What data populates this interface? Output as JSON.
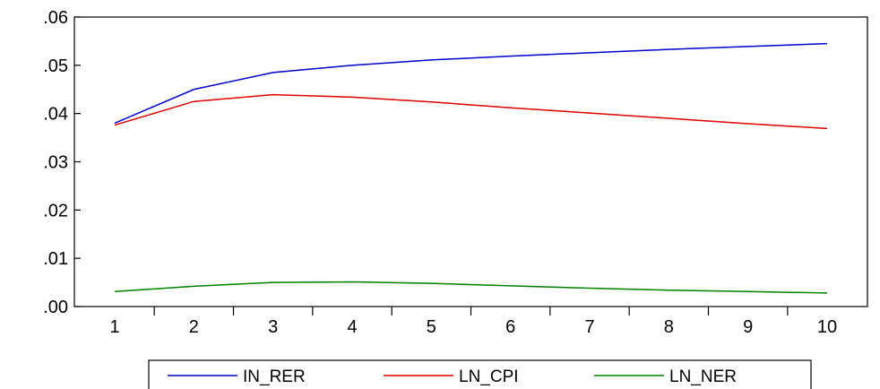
{
  "chart_data": {
    "type": "line",
    "title": "",
    "xlabel": "",
    "ylabel": "",
    "x": [
      1,
      2,
      3,
      4,
      5,
      6,
      7,
      8,
      9,
      10
    ],
    "xtick_labels": [
      "1",
      "2",
      "3",
      "4",
      "5",
      "6",
      "7",
      "8",
      "9",
      "10"
    ],
    "ylim": [
      0,
      0.06
    ],
    "yticks": [
      0.0,
      0.01,
      0.02,
      0.03,
      0.04,
      0.05,
      0.06
    ],
    "ytick_labels": [
      ".00",
      ".01",
      ".02",
      ".03",
      ".04",
      ".05",
      ".06"
    ],
    "grid": false,
    "legend_position": "bottom-center",
    "series": [
      {
        "name": "IN_RER",
        "color": "#0000cc",
        "values": [
          0.038,
          0.045,
          0.0485,
          0.05,
          0.0511,
          0.0519,
          0.0526,
          0.0533,
          0.0539,
          0.0545
        ]
      },
      {
        "name": "LN_CPI",
        "color": "#dd0000",
        "values": [
          0.0376,
          0.0425,
          0.0439,
          0.0434,
          0.0424,
          0.0412,
          0.0401,
          0.039,
          0.0379,
          0.0369
        ]
      },
      {
        "name": "LN_NER",
        "color": "#008000",
        "values": [
          0.0031,
          0.0042,
          0.005,
          0.0051,
          0.0048,
          0.0043,
          0.0038,
          0.0034,
          0.0031,
          0.0028
        ]
      }
    ]
  }
}
